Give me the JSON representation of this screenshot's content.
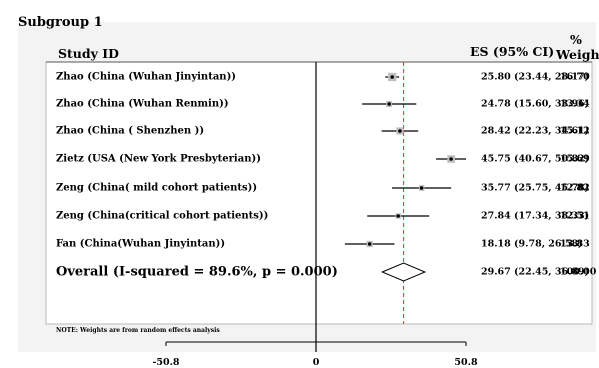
{
  "subgroup_label": "Subgroup 1",
  "headers": {
    "study": "Study ID",
    "es": "ES (95% CI)",
    "weight_pct": "%",
    "weight": "Weight"
  },
  "footnote": "NOTE: Weights are from random effects analysis",
  "chart_data": {
    "type": "forest",
    "xlim": [
      -50.8,
      50.8
    ],
    "ticks": [
      "-50.8",
      "0",
      "50.8"
    ],
    "tick_values": [
      -50.8,
      0,
      50.8
    ],
    "null_line": 0,
    "overall_line": 29.67,
    "studies": [
      {
        "label": "Zhao (China (Wuhan Jinyintan))",
        "es": 25.8,
        "lo": 23.44,
        "hi": 28.17,
        "es_text": "25.80 (23.44, 28.17)",
        "weight": "16.70"
      },
      {
        "label": "Zhao (China (Wuhan Renmin))",
        "es": 24.78,
        "lo": 15.6,
        "hi": 33.96,
        "es_text": "24.78 (15.60, 33.96)",
        "weight": "13.34"
      },
      {
        "label": "Zhao (China ( Shenzhen ))",
        "es": 28.42,
        "lo": 22.23,
        "hi": 34.61,
        "es_text": "28.42 (22.23, 34.61)",
        "weight": "15.12"
      },
      {
        "label": "Zietz (USA (New York Presbyterian))",
        "es": 45.75,
        "lo": 40.67,
        "hi": 50.82,
        "es_text": "45.75 (40.67, 50.82)",
        "weight": "15.69"
      },
      {
        "label": "Zeng (China( mild cohort patients))",
        "es": 35.77,
        "lo": 25.75,
        "hi": 45.78,
        "es_text": "35.77 (25.75, 45.78)",
        "weight": "12.82"
      },
      {
        "label": "Zeng (China(critical cohort patients))",
        "es": 27.84,
        "lo": 17.34,
        "hi": 38.33,
        "es_text": "27.84 (17.34, 38.33)",
        "weight": "12.51"
      },
      {
        "label": "Fan (China(Wuhan Jinyintan))",
        "es": 18.18,
        "lo": 9.78,
        "hi": 26.58,
        "es_text": "18.18 (9.78, 26.58)",
        "weight": "13.83"
      }
    ],
    "overall": {
      "label": "Overall  (I-squared = 89.6%, p = 0.000)",
      "es": 29.67,
      "lo": 22.45,
      "hi": 36.89,
      "es_text": "29.67 (22.45, 36.89)",
      "weight": "100.00"
    }
  }
}
